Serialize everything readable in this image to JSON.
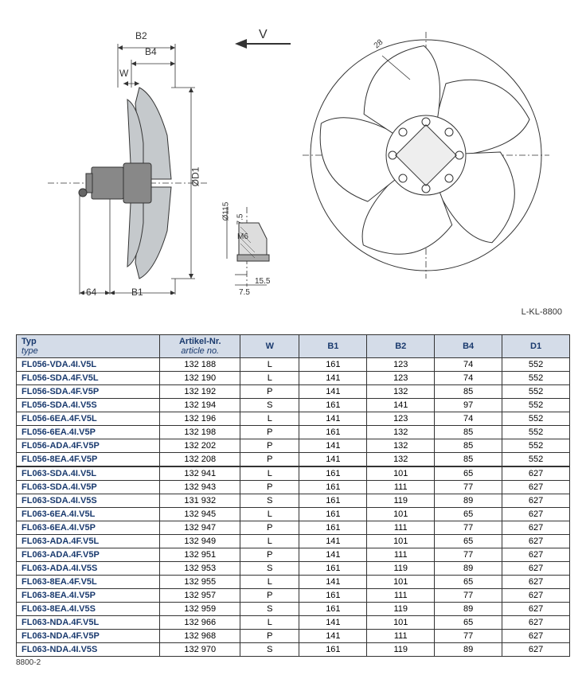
{
  "diagram": {
    "labels": {
      "B2": "B2",
      "B4": "B4",
      "W": "W",
      "V": "V",
      "D1": "ØD1",
      "d115": "Ø115",
      "dim64": "64",
      "B1": "B1",
      "dim7_5a": "7.5",
      "dim7_5b": "7.5",
      "dim15_5": "15.5",
      "M6": "M6",
      "dim28": "28",
      "drawing_no": "L-KL-8800"
    }
  },
  "table": {
    "headers": {
      "typ": "Typ",
      "typ_sub": "type",
      "art": "Artikel-Nr.",
      "art_sub": "article no.",
      "W": "W",
      "B1": "B1",
      "B2": "B2",
      "B4": "B4",
      "D1": "D1"
    },
    "rows": [
      {
        "g": 0,
        "typ": "FL056-VDA.4I.V5L",
        "art": "132 188",
        "W": "L",
        "B1": "161",
        "B2": "123",
        "B4": "74",
        "D1": "552"
      },
      {
        "g": 0,
        "typ": "FL056-SDA.4F.V5L",
        "art": "132 190",
        "W": "L",
        "B1": "141",
        "B2": "123",
        "B4": "74",
        "D1": "552"
      },
      {
        "g": 0,
        "typ": "FL056-SDA.4F.V5P",
        "art": "132 192",
        "W": "P",
        "B1": "141",
        "B2": "132",
        "B4": "85",
        "D1": "552"
      },
      {
        "g": 0,
        "typ": "FL056-SDA.4I.V5S",
        "art": "132 194",
        "W": "S",
        "B1": "161",
        "B2": "141",
        "B4": "97",
        "D1": "552"
      },
      {
        "g": 0,
        "typ": "FL056-6EA.4F.V5L",
        "art": "132 196",
        "W": "L",
        "B1": "141",
        "B2": "123",
        "B4": "74",
        "D1": "552"
      },
      {
        "g": 0,
        "typ": "FL056-6EA.4I.V5P",
        "art": "132 198",
        "W": "P",
        "B1": "161",
        "B2": "132",
        "B4": "85",
        "D1": "552"
      },
      {
        "g": 0,
        "typ": "FL056-ADA.4F.V5P",
        "art": "132 202",
        "W": "P",
        "B1": "141",
        "B2": "132",
        "B4": "85",
        "D1": "552"
      },
      {
        "g": 0,
        "typ": "FL056-8EA.4F.V5P",
        "art": "132 208",
        "W": "P",
        "B1": "141",
        "B2": "132",
        "B4": "85",
        "D1": "552"
      },
      {
        "g": 1,
        "typ": "FL063-SDA.4I.V5L",
        "art": "132 941",
        "W": "L",
        "B1": "161",
        "B2": "101",
        "B4": "65",
        "D1": "627"
      },
      {
        "g": 1,
        "typ": "FL063-SDA.4I.V5P",
        "art": "132 943",
        "W": "P",
        "B1": "161",
        "B2": "111",
        "B4": "77",
        "D1": "627"
      },
      {
        "g": 1,
        "typ": "FL063-SDA.4I.V5S",
        "art": "131 932",
        "W": "S",
        "B1": "161",
        "B2": "119",
        "B4": "89",
        "D1": "627"
      },
      {
        "g": 1,
        "typ": "FL063-6EA.4I.V5L",
        "art": "132 945",
        "W": "L",
        "B1": "161",
        "B2": "101",
        "B4": "65",
        "D1": "627"
      },
      {
        "g": 1,
        "typ": "FL063-6EA.4I.V5P",
        "art": "132 947",
        "W": "P",
        "B1": "161",
        "B2": "111",
        "B4": "77",
        "D1": "627"
      },
      {
        "g": 1,
        "typ": "FL063-ADA.4F.V5L",
        "art": "132 949",
        "W": "L",
        "B1": "141",
        "B2": "101",
        "B4": "65",
        "D1": "627"
      },
      {
        "g": 1,
        "typ": "FL063-ADA.4F.V5P",
        "art": "132 951",
        "W": "P",
        "B1": "141",
        "B2": "111",
        "B4": "77",
        "D1": "627"
      },
      {
        "g": 1,
        "typ": "FL063-ADA.4I.V5S",
        "art": "132 953",
        "W": "S",
        "B1": "161",
        "B2": "119",
        "B4": "89",
        "D1": "627"
      },
      {
        "g": 1,
        "typ": "FL063-8EA.4F.V5L",
        "art": "132 955",
        "W": "L",
        "B1": "141",
        "B2": "101",
        "B4": "65",
        "D1": "627"
      },
      {
        "g": 1,
        "typ": "FL063-8EA.4I.V5P",
        "art": "132 957",
        "W": "P",
        "B1": "161",
        "B2": "111",
        "B4": "77",
        "D1": "627"
      },
      {
        "g": 1,
        "typ": "FL063-8EA.4I.V5S",
        "art": "132 959",
        "W": "S",
        "B1": "161",
        "B2": "119",
        "B4": "89",
        "D1": "627"
      },
      {
        "g": 1,
        "typ": "FL063-NDA.4F.V5L",
        "art": "132 966",
        "W": "L",
        "B1": "141",
        "B2": "101",
        "B4": "65",
        "D1": "627"
      },
      {
        "g": 1,
        "typ": "FL063-NDA.4F.V5P",
        "art": "132 968",
        "W": "P",
        "B1": "141",
        "B2": "111",
        "B4": "77",
        "D1": "627"
      },
      {
        "g": 1,
        "typ": "FL063-NDA.4I.V5S",
        "art": "132 970",
        "W": "S",
        "B1": "161",
        "B2": "119",
        "B4": "89",
        "D1": "627"
      }
    ],
    "footer": "8800-2"
  }
}
